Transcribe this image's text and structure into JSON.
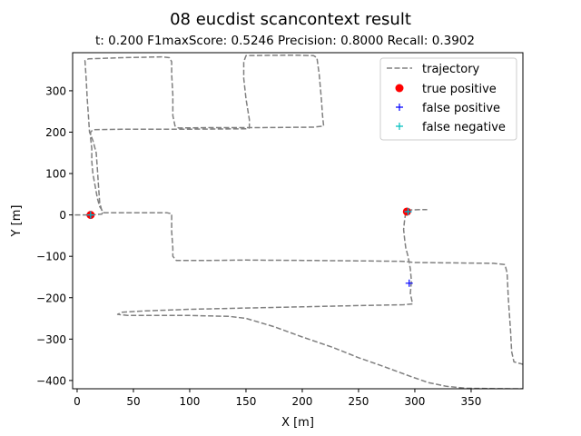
{
  "chart_data": {
    "type": "line",
    "title": "08 eucdist scancontext result",
    "subtitle": "t:  0.200  F1maxScore:  0.5246  Precision:  0.8000  Recall:  0.3902",
    "xlabel": "X [m]",
    "ylabel": "Y [m]",
    "xlim": [
      -4,
      396
    ],
    "ylim": [
      -420,
      392
    ],
    "xticks": [
      0,
      50,
      100,
      150,
      200,
      250,
      300,
      350
    ],
    "yticks": [
      -400,
      -300,
      -200,
      -100,
      0,
      100,
      200,
      300
    ],
    "grid": false,
    "legend_position": "top-right",
    "legend": [
      {
        "label": "trajectory",
        "marker": "dash-line",
        "color": "#808080"
      },
      {
        "label": "true positive",
        "marker": "circle",
        "color": "#ff0000"
      },
      {
        "label": "false positive",
        "marker": "plus",
        "color": "#0000ff"
      },
      {
        "label": "false negative",
        "marker": "plus",
        "color": "#00bfbf"
      }
    ],
    "series": [
      {
        "name": "trajectory",
        "style": "dashed",
        "color": "#808080",
        "points": [
          [
            -2,
            0
          ],
          [
            12,
            0
          ],
          [
            22,
            2
          ],
          [
            23,
            8
          ],
          [
            20,
            20
          ],
          [
            18,
            40
          ],
          [
            16,
            70
          ],
          [
            14,
            100
          ],
          [
            13,
            130
          ],
          [
            13,
            160
          ],
          [
            12,
            185
          ],
          [
            12,
            200
          ],
          [
            14,
            206
          ],
          [
            40,
            207
          ],
          [
            85,
            207
          ],
          [
            90,
            207
          ],
          [
            150,
            208
          ],
          [
            153,
            210
          ],
          [
            153,
            230
          ],
          [
            150,
            280
          ],
          [
            148,
            330
          ],
          [
            148,
            370
          ],
          [
            150,
            385
          ],
          [
            190,
            386
          ],
          [
            210,
            385
          ],
          [
            213,
            380
          ],
          [
            215,
            340
          ],
          [
            217,
            280
          ],
          [
            218,
            240
          ],
          [
            219,
            215
          ],
          [
            210,
            212
          ],
          [
            160,
            211
          ],
          [
            115,
            211
          ],
          [
            90,
            210
          ],
          [
            87,
            215
          ],
          [
            85,
            240
          ],
          [
            85,
            290
          ],
          [
            84,
            340
          ],
          [
            84,
            370
          ],
          [
            82,
            380
          ],
          [
            75,
            382
          ],
          [
            40,
            380
          ],
          [
            10,
            377
          ],
          [
            7,
            373
          ],
          [
            8,
            330
          ],
          [
            9,
            280
          ],
          [
            10,
            240
          ],
          [
            11,
            200
          ],
          [
            14,
            180
          ],
          [
            17,
            150
          ],
          [
            18,
            110
          ],
          [
            19,
            70
          ],
          [
            20,
            30
          ],
          [
            22,
            10
          ],
          [
            24,
            5
          ],
          [
            60,
            5
          ],
          [
            80,
            5
          ],
          [
            84,
            3
          ],
          [
            84,
            -40
          ],
          [
            85,
            -80
          ],
          [
            85,
            -100
          ],
          [
            88,
            -110
          ],
          [
            120,
            -110
          ],
          [
            150,
            -109
          ],
          [
            200,
            -110
          ],
          [
            250,
            -111
          ],
          [
            290,
            -112
          ],
          [
            300,
            -115
          ],
          [
            340,
            -116
          ],
          [
            370,
            -117
          ],
          [
            380,
            -120
          ],
          [
            382,
            -140
          ],
          [
            383,
            -200
          ],
          [
            385,
            -280
          ],
          [
            386,
            -330
          ],
          [
            388,
            -355
          ],
          [
            395,
            -360
          ],
          [
            404,
            -370
          ],
          [
            406,
            -380
          ],
          [
            404,
            -410
          ],
          [
            396,
            -420
          ],
          [
            385,
            -420
          ],
          [
            346,
            -419
          ],
          [
            328,
            -414
          ],
          [
            312,
            -405
          ],
          [
            296,
            -390
          ],
          [
            271,
            -365
          ],
          [
            250,
            -345
          ],
          [
            227,
            -320
          ],
          [
            200,
            -295
          ],
          [
            175,
            -270
          ],
          [
            150,
            -250
          ],
          [
            135,
            -245
          ],
          [
            100,
            -243
          ],
          [
            70,
            -243
          ],
          [
            45,
            -243
          ],
          [
            38,
            -241
          ],
          [
            36,
            -240
          ],
          [
            40,
            -235
          ],
          [
            60,
            -232
          ],
          [
            100,
            -228
          ],
          [
            150,
            -225
          ],
          [
            200,
            -222
          ],
          [
            250,
            -219
          ],
          [
            290,
            -217
          ],
          [
            298,
            -215
          ],
          [
            296,
            -190
          ],
          [
            297,
            -160
          ],
          [
            296,
            -130
          ],
          [
            294,
            -100
          ],
          [
            292,
            -80
          ],
          [
            291,
            -60
          ],
          [
            290,
            -35
          ],
          [
            291,
            -10
          ],
          [
            292,
            5
          ],
          [
            293,
            10
          ],
          [
            294,
            12
          ],
          [
            306,
            13
          ],
          [
            311,
            13
          ]
        ]
      }
    ],
    "true_positive": [
      [
        12,
        0
      ],
      [
        293,
        8
      ]
    ],
    "false_positive": [
      [
        12,
        0
      ],
      [
        294,
        8
      ],
      [
        295,
        -165
      ]
    ],
    "false_negative": [
      [
        12,
        0
      ],
      [
        294,
        8
      ]
    ]
  }
}
